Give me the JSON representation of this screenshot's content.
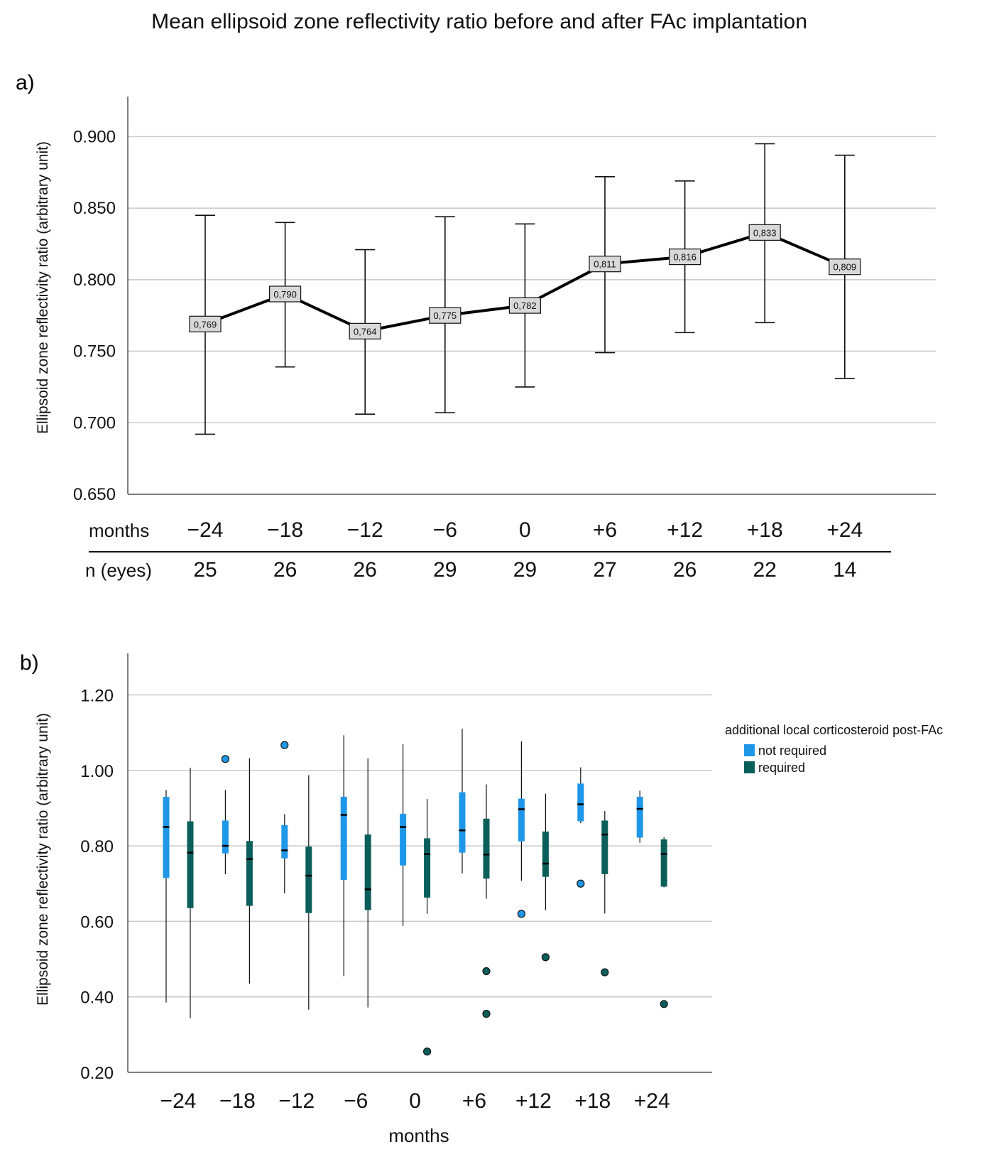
{
  "title": "Mean ellipsoid zone reflectivity ratio before and after FAc implantation",
  "colors": {
    "not_required": "#1f97e8",
    "required": "#0b5f5a",
    "grid": "#c8c8c8",
    "label_box": "#d9d9d9",
    "line": "#000000"
  },
  "panel_a": {
    "label": "a)",
    "table": {
      "months_label": "months",
      "n_label": "n (eyes)",
      "n_values": [
        "25",
        "26",
        "26",
        "29",
        "29",
        "27",
        "26",
        "22",
        "14"
      ]
    }
  },
  "panel_b": {
    "label": "b)"
  },
  "chart_data": [
    {
      "type": "line",
      "panel": "a",
      "title": "Mean ellipsoid zone reflectivity ratio before and after FAc implantation",
      "xlabel": "months",
      "ylabel": "Ellipsoid zone reflectivity ratio (arbitrary unit)",
      "categories": [
        "−24",
        "−18",
        "−12",
        "−6",
        "0",
        "+6",
        "+12",
        "+18",
        "+24"
      ],
      "means": [
        0.769,
        0.79,
        0.764,
        0.775,
        0.782,
        0.811,
        0.816,
        0.833,
        0.809
      ],
      "mean_labels": [
        "0,769",
        "0,790",
        "0,764",
        "0,775",
        "0,782",
        "0,811",
        "0,816",
        "0,833",
        "0,809"
      ],
      "error_upper": [
        0.845,
        0.84,
        0.821,
        0.844,
        0.839,
        0.872,
        0.869,
        0.895,
        0.887
      ],
      "error_lower": [
        0.692,
        0.739,
        0.706,
        0.707,
        0.725,
        0.749,
        0.763,
        0.77,
        0.731
      ],
      "ylim": [
        0.65,
        0.928
      ],
      "yticks": [
        0.65,
        0.7,
        0.75,
        0.8,
        0.85,
        0.9
      ],
      "ytick_labels": [
        "0.650",
        "0.700",
        "0.750",
        "0.800",
        "0.850",
        "0.900"
      ],
      "grid": true
    },
    {
      "type": "box",
      "panel": "b",
      "xlabel": "months",
      "ylabel": "Ellipsoid zone reflectivity ratio (arbitrary unit)",
      "categories": [
        "−24",
        "−18",
        "−12",
        "−6",
        "0",
        "+6",
        "+12",
        "+18",
        "+24"
      ],
      "ylim": [
        0.2,
        1.31
      ],
      "yticks": [
        0.2,
        0.4,
        0.6,
        0.8,
        1.0,
        1.2
      ],
      "ytick_labels": [
        "0.20",
        "0.40",
        "0.60",
        "0.80",
        "1.00",
        "1.20"
      ],
      "grid": true,
      "legend": {
        "title": "additional local corticosteroid post-FAc",
        "position": "right",
        "entries": [
          "not required",
          "required"
        ]
      },
      "series": [
        {
          "name": "not required",
          "boxes": [
            {
              "min": 0.385,
              "q1": 0.715,
              "median": 0.85,
              "q3": 0.93,
              "max": 0.948,
              "outliers": []
            },
            {
              "min": 0.725,
              "q1": 0.78,
              "median": 0.8,
              "q3": 0.867,
              "max": 0.948,
              "outliers": [
                1.03
              ]
            },
            {
              "min": 0.674,
              "q1": 0.767,
              "median": 0.788,
              "q3": 0.855,
              "max": 0.884,
              "outliers": [
                1.067
              ]
            },
            {
              "min": 0.455,
              "q1": 0.71,
              "median": 0.882,
              "q3": 0.93,
              "max": 1.093,
              "outliers": []
            },
            {
              "min": 0.588,
              "q1": 0.748,
              "median": 0.85,
              "q3": 0.885,
              "max": 1.069,
              "outliers": []
            },
            {
              "min": 0.727,
              "q1": 0.782,
              "median": 0.841,
              "q3": 0.942,
              "max": 1.11,
              "outliers": []
            },
            {
              "min": 0.707,
              "q1": 0.812,
              "median": 0.897,
              "q3": 0.925,
              "max": 1.077,
              "outliers": [
                0.62
              ]
            },
            {
              "min": 0.86,
              "q1": 0.865,
              "median": 0.91,
              "q3": 0.965,
              "max": 1.008,
              "outliers": [
                0.7
              ]
            },
            {
              "min": 0.808,
              "q1": 0.822,
              "median": 0.898,
              "q3": 0.93,
              "max": 0.946,
              "outliers": []
            }
          ]
        },
        {
          "name": "required",
          "boxes": [
            {
              "min": 0.343,
              "q1": 0.635,
              "median": 0.782,
              "q3": 0.865,
              "max": 1.007,
              "outliers": []
            },
            {
              "min": 0.435,
              "q1": 0.641,
              "median": 0.765,
              "q3": 0.813,
              "max": 1.032,
              "outliers": []
            },
            {
              "min": 0.366,
              "q1": 0.622,
              "median": 0.721,
              "q3": 0.798,
              "max": 0.987,
              "outliers": []
            },
            {
              "min": 0.372,
              "q1": 0.63,
              "median": 0.685,
              "q3": 0.83,
              "max": 1.032,
              "outliers": []
            },
            {
              "min": 0.62,
              "q1": 0.663,
              "median": 0.778,
              "q3": 0.82,
              "max": 0.924,
              "outliers": [
                0.255
              ]
            },
            {
              "min": 0.66,
              "q1": 0.713,
              "median": 0.777,
              "q3": 0.872,
              "max": 0.963,
              "outliers": [
                0.468,
                0.355
              ]
            },
            {
              "min": 0.63,
              "q1": 0.718,
              "median": 0.753,
              "q3": 0.838,
              "max": 0.938,
              "outliers": [
                0.505
              ]
            },
            {
              "min": 0.621,
              "q1": 0.725,
              "median": 0.83,
              "q3": 0.867,
              "max": 0.892,
              "outliers": [
                0.465
              ]
            },
            {
              "min": 0.69,
              "q1": 0.692,
              "median": 0.779,
              "q3": 0.817,
              "max": 0.823,
              "outliers": [
                0.381
              ]
            }
          ]
        }
      ]
    }
  ]
}
